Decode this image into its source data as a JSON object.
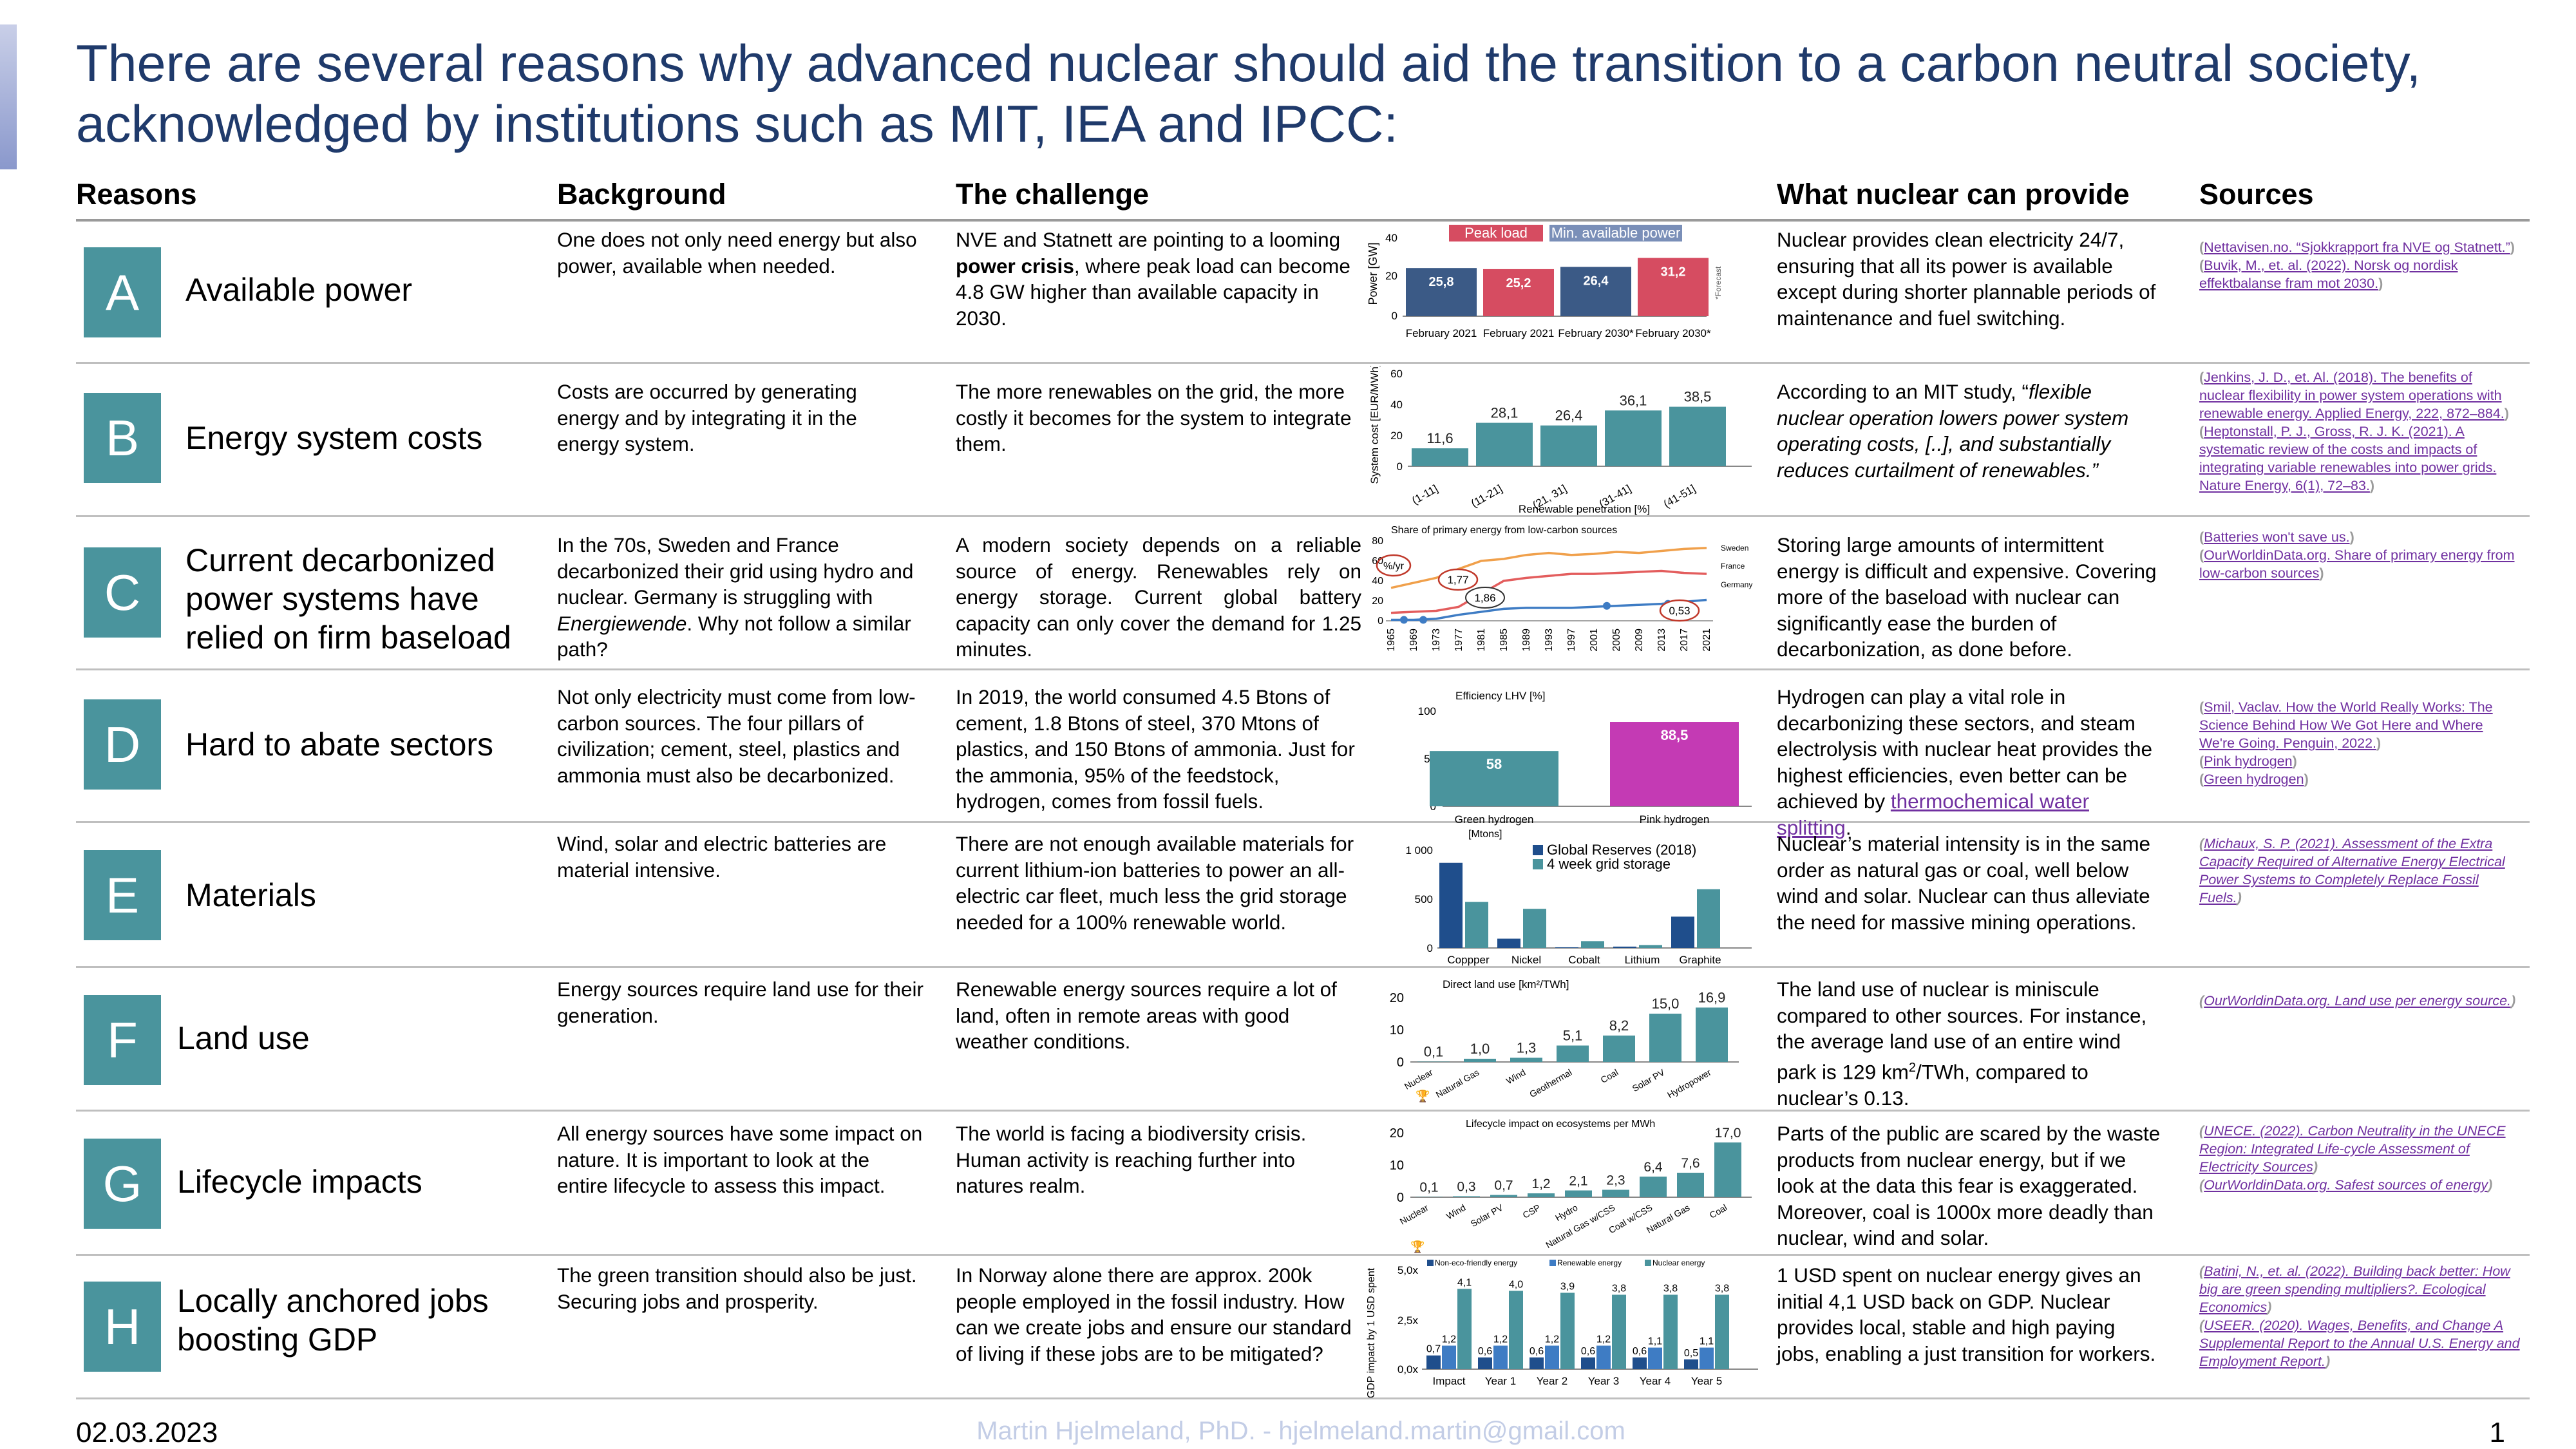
{
  "title": "There are several reasons why advanced nuclear should aid the transition to a carbon neutral society, acknowledged by institutions such as MIT, IEA and IPCC:",
  "headers": {
    "reasons": "Reasons",
    "background": "Background",
    "challenge": "The challenge",
    "nuclear": "What nuclear can provide",
    "sources": "Sources"
  },
  "rows": [
    {
      "letter": "A",
      "name": "Available power",
      "background": "One does not only need energy but also power, available when needed.",
      "challenge_pre": "NVE and Statnett are pointing to a looming ",
      "challenge_bold": "power crisis",
      "challenge_post": ", where peak load can become 4.8 GW higher than available capacity in 2030.",
      "nuclear": "Nuclear provides clean electricity 24/7, ensuring that all its power is available except during shorter plannable periods of maintenance and fuel switching.",
      "sources": [
        "Nettavisen.no. “Sjokkrapport fra NVE og Statnett.”",
        "Buvik, M., et. al. (2022). Norsk og nordisk effektbalanse fram mot 2030."
      ]
    },
    {
      "letter": "B",
      "name": "Energy system costs",
      "background": "Costs are occurred by generating energy and by integrating it in the energy system.",
      "challenge": "The more renewables on the grid, the more costly it becomes for the system to integrate them.",
      "nuclear_pre": "According to an MIT study, “",
      "nuclear_italic": "flexible nuclear operation lowers power system operating costs, [..], and substantially reduces curtailment of renewables.”",
      "sources": [
        "Jenkins, J. D., et. Al. (2018). The benefits of nuclear flexibility in power system operations with renewable energy. Applied Energy, 222, 872–884.",
        "Heptonstall, P. J., Gross, R. J. K. (2021). A systematic review of the costs and impacts of integrating variable renewables into power grids. Nature Energy, 6(1), 72–83."
      ]
    },
    {
      "letter": "C",
      "name": "Current decarbonized power systems have relied on firm baseload",
      "background_pre": "In the 70s, Sweden and France decarbonized their grid using hydro and nuclear. Germany is struggling with ",
      "background_italic": "Energiewende",
      "background_post": ". Why not follow a similar path?",
      "challenge": "A modern society depends on a reliable source of energy. Renewables rely on energy storage. Current global battery capacity can only cover the demand for 1.25 minutes.",
      "nuclear": "Storing large amounts of intermittent energy is difficult and expensive. Covering more of the baseload with nuclear can significantly ease the burden of decarbonization, as done before.",
      "sources": [
        "Batteries won't save us.",
        "OurWorldinData.org. Share of primary energy from low-carbon sources"
      ]
    },
    {
      "letter": "D",
      "name": "Hard to abate sectors",
      "background": "Not only electricity must come from low-carbon sources. The four pillars of civilization; cement, steel, plastics and ammonia must also be decarbonized.",
      "challenge": "In 2019, the world consumed 4.5 Btons of cement, 1.8 Btons of steel, 370 Mtons of plastics, and 150 Btons of ammonia. Just for the ammonia, 95% of the feedstock, hydrogen, comes from fossil fuels.",
      "nuclear_pre": "Hydrogen can play a vital role in decarbonizing these sectors, and steam electrolysis with nuclear heat provides the highest efficiencies, even better can be achieved by ",
      "nuclear_link": "thermochemical water splitting",
      "nuclear_post": ".",
      "sources": [
        "Smil, Vaclav. How the World Really Works: The Science Behind How We Got Here and Where We're Going. Penguin, 2022.",
        "Pink hydrogen",
        "Green hydrogen"
      ]
    },
    {
      "letter": "E",
      "name": "Materials",
      "background": "Wind, solar and electric batteries are material intensive.",
      "challenge": "There are not enough available materials for current lithium-ion batteries to power an all-electric car fleet, much less the grid storage needed for a 100% renewable world.",
      "nuclear": "Nuclear’s material intensity is in the same order as natural gas or coal, well below wind and solar. Nuclear can thus alleviate the need for massive mining operations.",
      "sources": [
        "Michaux, S. P. (2021). Assessment of the Extra Capacity Required of Alternative Energy Electrical Power Systems to Completely Replace Fossil Fuels."
      ]
    },
    {
      "letter": "F",
      "name": "Land use",
      "background": "Energy sources require land use for their generation.",
      "challenge": "Renewable energy sources require a lot of land, often in remote areas with good weather conditions.",
      "nuclear_pre": "The land use of nuclear is miniscule compared to other sources. For instance, the average land use of an entire wind park is 129 km",
      "nuclear_sup": "2",
      "nuclear_post": "/TWh, compared to nuclear’s 0.13.",
      "sources": [
        "OurWorldinData.org. Land use per energy source."
      ]
    },
    {
      "letter": "G",
      "name": "Lifecycle impacts",
      "background": "All energy sources have some impact on nature. It is important to look at the entire lifecycle to assess this impact.",
      "challenge": "The world is facing a biodiversity crisis. Human activity is reaching further into natures realm.",
      "nuclear": "Parts of the public are scared by the waste products from nuclear energy, but if we look at the data this fear is exaggerated. Moreover, coal is 1000x more deadly than nuclear, wind and solar.",
      "sources": [
        "UNECE. (2022). Carbon Neutrality in the UNECE Region: Integrated Life-cycle Assessment of Electricity Sources",
        "OurWorldinData.org. Safest sources of energy"
      ]
    },
    {
      "letter": "H",
      "name": "Locally anchored jobs boosting GDP",
      "background": "The green transition should also be just. Securing jobs and prosperity.",
      "challenge": "In Norway alone there are approx. 200k people employed in the fossil industry. How can we create jobs and ensure our standard of living if these jobs are to be mitigated?",
      "nuclear": "1 USD spent on nuclear energy gives an initial 4,1 USD back on GDP. Nuclear provides local, stable and high paying jobs, enabling a just transition for workers.",
      "sources": [
        "Batini, N., et. al. (2022). Building back better: How big are green spending multipliers?. Ecological Economics",
        "USEER. (2020). Wages, Benefits, and Change A Supplemental Report to the Annual U.S. Energy and Employment Report."
      ]
    }
  ],
  "chart_data": [
    {
      "id": "A",
      "type": "bar",
      "ylabel": "Power [GW]",
      "ylim": [
        0,
        40
      ],
      "yticks": [
        "0",
        "20",
        "40"
      ],
      "legend": [
        "Peak load",
        "Min. available power"
      ],
      "legend_colors": [
        "#d64c61",
        "#7a8fb8"
      ],
      "categories": [
        "February 2021",
        "February 2021",
        "February 2030*",
        "February 2030*"
      ],
      "values": [
        25.8,
        25.2,
        26.4,
        31.2
      ],
      "labels": [
        "25,8",
        "25,2",
        "26,4",
        "31,2"
      ],
      "colors": [
        "#3b5a86",
        "#d64c61",
        "#3b5a86",
        "#d64c61"
      ],
      "note": "*Forecast"
    },
    {
      "id": "B",
      "type": "bar",
      "ylabel": "System cost [EUR/MWh]",
      "xlabel": "Renewable penetration [%]",
      "ylim": [
        0,
        60
      ],
      "yticks": [
        "0",
        "20",
        "40",
        "60"
      ],
      "categories": [
        "(1-11]",
        "(11-21]",
        "(21, 31]",
        "(31-41]",
        "(41-51]"
      ],
      "values": [
        11.6,
        28.1,
        26.4,
        36.1,
        38.5
      ],
      "labels": [
        "11,6",
        "28,1",
        "26,4",
        "36,1",
        "38,5"
      ],
      "color": "#4a949d"
    },
    {
      "id": "C",
      "type": "line",
      "title": "Share of primary energy from low-carbon sources",
      "ylim": [
        0,
        80
      ],
      "yticks": [
        "0",
        "10",
        "20",
        "30",
        "40",
        "50",
        "60",
        "70",
        "80"
      ],
      "x": [
        "1965",
        "1969",
        "1973",
        "1977",
        "1981",
        "1985",
        "1989",
        "1993",
        "1997",
        "2001",
        "2005",
        "2009",
        "2013",
        "2017",
        "2021"
      ],
      "series": [
        {
          "name": "Sweden",
          "color": "#f0a04b",
          "values": [
            33,
            38,
            43,
            52,
            60,
            62,
            66,
            68,
            66,
            67,
            69,
            68,
            70,
            72,
            73
          ]
        },
        {
          "name": "France",
          "color": "#e35d5d",
          "values": [
            8,
            9,
            10,
            14,
            27,
            40,
            43,
            45,
            47,
            47,
            48,
            49,
            50,
            48,
            47
          ]
        },
        {
          "name": "Germany",
          "color": "#3e7cc4",
          "values": [
            1,
            1,
            2,
            6,
            9,
            12,
            13,
            13,
            13,
            14,
            15,
            16,
            17,
            19,
            21
          ]
        }
      ],
      "unit_label": "%/yr",
      "annotations": [
        "1,77",
        "1,86",
        "0,53"
      ]
    },
    {
      "id": "D",
      "type": "bar",
      "title": "Efficiency LHV [%]",
      "ylim": [
        0,
        100
      ],
      "yticks": [
        "0",
        "50",
        "100"
      ],
      "categories": [
        "Green hydrogen",
        "Pink hydrogen"
      ],
      "values": [
        58,
        88.5
      ],
      "labels": [
        "58",
        "88,5"
      ],
      "colors": [
        "#4a949d",
        "#c43ab4"
      ]
    },
    {
      "id": "E",
      "type": "bar",
      "title": "[Mtons]",
      "ylim": [
        0,
        1000
      ],
      "yticks": [
        "0",
        "500",
        "1 000"
      ],
      "categories": [
        "Coppper",
        "Nickel",
        "Cobalt",
        "Lithium",
        "Graphite"
      ],
      "series": [
        {
          "name": "Global Reserves (2018)",
          "color": "#1f4e8c",
          "values": [
            870,
            95,
            7,
            14,
            320
          ]
        },
        {
          "name": "4 week grid storage",
          "color": "#4a949d",
          "values": [
            470,
            400,
            70,
            30,
            600
          ]
        }
      ]
    },
    {
      "id": "F",
      "type": "bar",
      "title": "Direct land use [km²/TWh]",
      "ylim": [
        0,
        20
      ],
      "yticks": [
        "0",
        "10",
        "20"
      ],
      "categories": [
        "Nuclear",
        "Natural Gas",
        "Wind",
        "Geothermal",
        "Coal",
        "Solar PV",
        "Hydropower"
      ],
      "values": [
        0.1,
        1.0,
        1.3,
        5.1,
        8.2,
        15.0,
        16.9
      ],
      "labels": [
        "0,1",
        "1,0",
        "1,3",
        "5,1",
        "8,2",
        "15,0",
        "16,9"
      ],
      "color": "#4a949d"
    },
    {
      "id": "G",
      "type": "bar",
      "title": "Lifecycle impact on ecosystems per MWh",
      "ylim": [
        0,
        20
      ],
      "yticks": [
        "0",
        "10",
        "20"
      ],
      "categories": [
        "Nuclear",
        "Wind",
        "Solar PV",
        "CSP",
        "Hydro",
        "Natural Gas w/CSS",
        "Coal w/CSS",
        "Natural Gas",
        "Coal"
      ],
      "values": [
        0.1,
        0.3,
        0.7,
        1.2,
        2.1,
        2.3,
        6.4,
        7.6,
        17.0
      ],
      "labels": [
        "0,1",
        "0,3",
        "0,7",
        "1,2",
        "2,1",
        "2,3",
        "6,4",
        "7,6",
        "17,0"
      ],
      "color": "#4a949d"
    },
    {
      "id": "H",
      "type": "bar",
      "ylabel": "GDP impact by 1 USD spent",
      "yticks": [
        "0,0x",
        "2,5x",
        "5,0x"
      ],
      "ylim": [
        0,
        5
      ],
      "categories": [
        "Impact",
        "Year 1",
        "Year 2",
        "Year 3",
        "Year 4",
        "Year 5"
      ],
      "series": [
        {
          "name": "Non-eco-friendly energy",
          "color": "#1f4e8c",
          "values": [
            0.7,
            0.6,
            0.6,
            0.6,
            0.6,
            0.5
          ],
          "labels": [
            "0,7",
            "0,6",
            "0,6",
            "0,6",
            "0,6",
            "0,5"
          ]
        },
        {
          "name": "Renewable energy",
          "color": "#3e7cc4",
          "values": [
            1.2,
            1.2,
            1.2,
            1.2,
            1.1,
            1.1
          ],
          "labels": [
            "1,2",
            "1,2",
            "1,2",
            "1,2",
            "1,1",
            "1,1"
          ]
        },
        {
          "name": "Nuclear energy",
          "color": "#4a949d",
          "values": [
            4.1,
            4.0,
            3.9,
            3.8,
            3.8,
            3.8
          ],
          "labels": [
            "4,1",
            "4,0",
            "3,9",
            "3,8",
            "3,8",
            "3,8"
          ]
        }
      ]
    }
  ],
  "footer": {
    "date": "02.03.2023",
    "author": "Martin Hjelmeland, PhD. - hjelmeland.martin@gmail.com",
    "page": "1"
  }
}
